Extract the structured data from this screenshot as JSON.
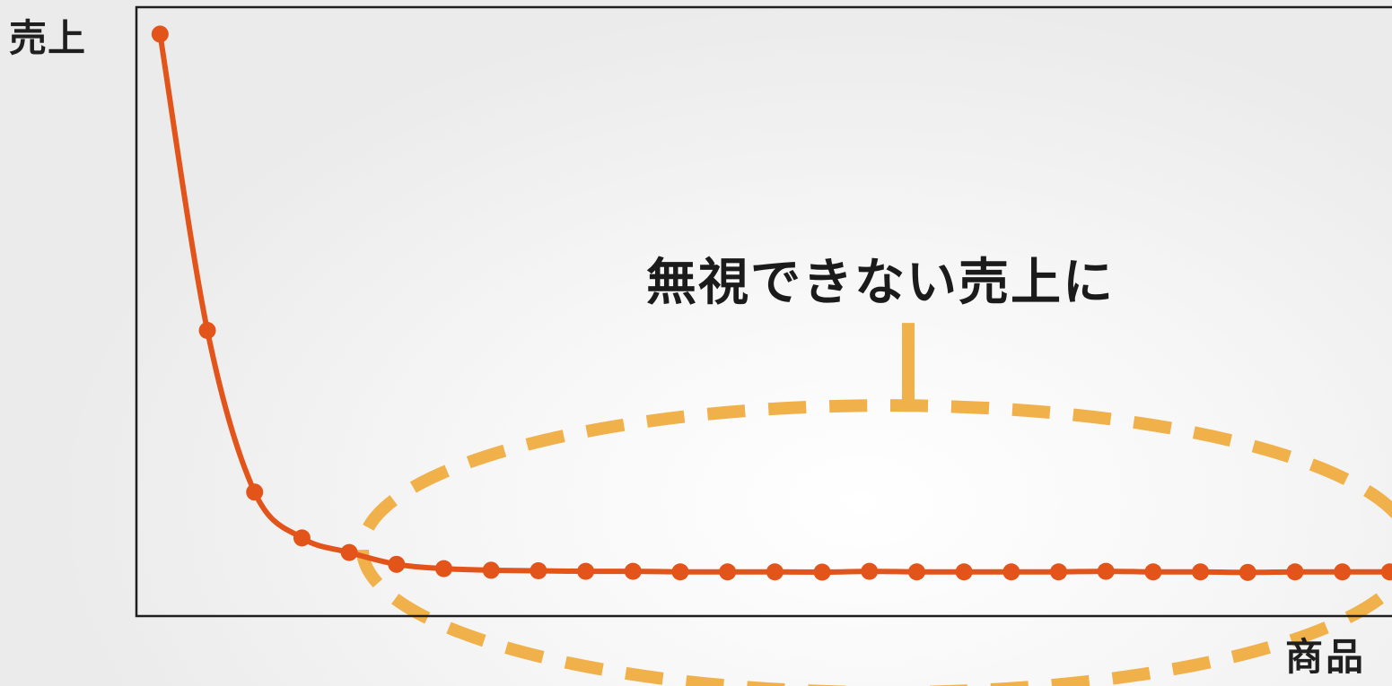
{
  "chart_data": {
    "type": "line",
    "ylabel": "売上",
    "xlabel": "商品",
    "annotation": "無視できない売上に",
    "grid": false,
    "legend": "none",
    "x": [
      1,
      2,
      3,
      4,
      5,
      6,
      7,
      8,
      9,
      10,
      11,
      12,
      13,
      14,
      15,
      16,
      17,
      18,
      19,
      20,
      21,
      22,
      23,
      24,
      25,
      26,
      27
    ],
    "series": [
      {
        "values": [
          100,
          45,
          15,
          6.5,
          3.8,
          1.6,
          0.8,
          0.5,
          0.4,
          0.3,
          0.3,
          0.2,
          0.2,
          0.2,
          0.15,
          0.3,
          0.2,
          0.2,
          0.2,
          0.2,
          0.3,
          0.2,
          0.2,
          0.1,
          0.2,
          0.2,
          0.2
        ]
      }
    ],
    "ylim": [
      -8,
      105
    ],
    "xlim": [
      0.5,
      27.05
    ],
    "highlight_range": [
      6,
      27
    ],
    "colors": {
      "line": "#e2541a",
      "highlight": "#f0b04a",
      "frame": "#1e1e1e"
    }
  }
}
